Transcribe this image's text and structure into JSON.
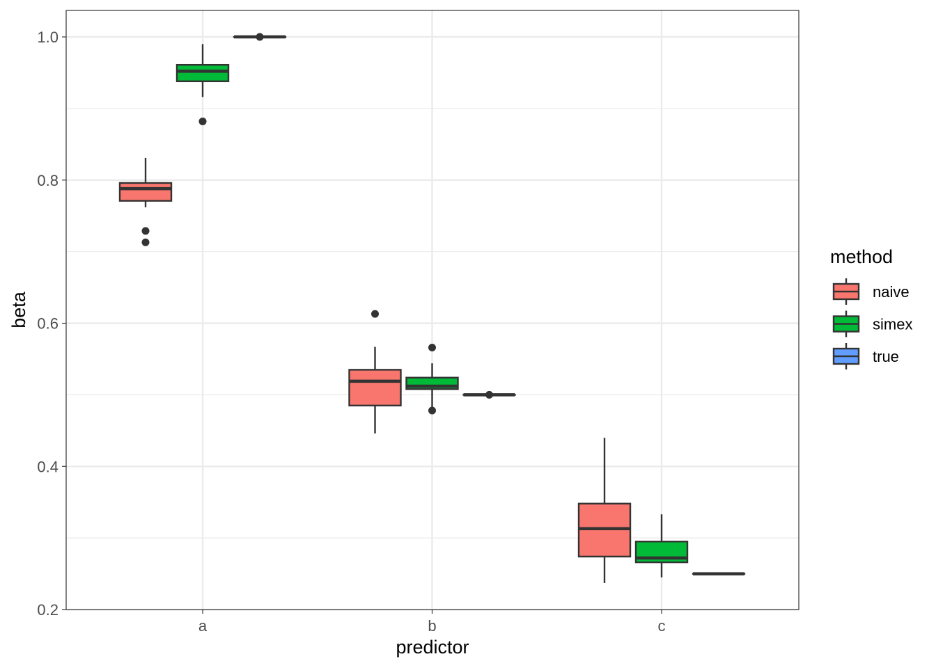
{
  "chart_data": {
    "type": "boxplot",
    "title": "",
    "xlabel": "predictor",
    "ylabel": "beta",
    "categories": [
      "a",
      "b",
      "c"
    ],
    "ylim": [
      0.2,
      1.037
    ],
    "y_ticks": [
      0.2,
      0.4,
      0.6,
      0.8,
      1.0
    ],
    "y_tick_labels": [
      "0.2",
      "0.4",
      "0.6",
      "0.8",
      "1.0"
    ],
    "legend": {
      "title": "method",
      "position": "right",
      "entries": [
        {
          "label": "naive",
          "color": "#F8766D"
        },
        {
          "label": "simex",
          "color": "#00BA38"
        },
        {
          "label": "true",
          "color": "#619CFF"
        }
      ]
    },
    "grid": true,
    "series": [
      {
        "name": "naive",
        "color": "#F8766D",
        "boxes": [
          {
            "category": "a",
            "whisker_low": 0.762,
            "q1": 0.771,
            "median": 0.788,
            "q3": 0.796,
            "whisker_high": 0.831,
            "outliers": [
              0.729,
              0.713
            ]
          },
          {
            "category": "b",
            "whisker_low": 0.446,
            "q1": 0.485,
            "median": 0.519,
            "q3": 0.535,
            "whisker_high": 0.567,
            "outliers": [
              0.613
            ]
          },
          {
            "category": "c",
            "whisker_low": 0.237,
            "q1": 0.274,
            "median": 0.313,
            "q3": 0.348,
            "whisker_high": 0.44,
            "outliers": []
          }
        ]
      },
      {
        "name": "simex",
        "color": "#00BA38",
        "boxes": [
          {
            "category": "a",
            "whisker_low": 0.916,
            "q1": 0.938,
            "median": 0.952,
            "q3": 0.961,
            "whisker_high": 0.99,
            "outliers": [
              0.882
            ]
          },
          {
            "category": "b",
            "whisker_low": 0.479,
            "q1": 0.508,
            "median": 0.512,
            "q3": 0.524,
            "whisker_high": 0.544,
            "outliers": [
              0.566,
              0.478
            ]
          },
          {
            "category": "c",
            "whisker_low": 0.245,
            "q1": 0.266,
            "median": 0.272,
            "q3": 0.295,
            "whisker_high": 0.333,
            "outliers": []
          }
        ]
      },
      {
        "name": "true",
        "color": "#619CFF",
        "boxes": [
          {
            "category": "a",
            "whisker_low": 1.0,
            "q1": 1.0,
            "median": 1.0,
            "q3": 1.0,
            "whisker_high": 1.0,
            "outliers": [
              1.0
            ]
          },
          {
            "category": "b",
            "whisker_low": 0.5,
            "q1": 0.5,
            "median": 0.5,
            "q3": 0.5,
            "whisker_high": 0.5,
            "outliers": [
              0.5
            ]
          },
          {
            "category": "c",
            "whisker_low": 0.25,
            "q1": 0.25,
            "median": 0.25,
            "q3": 0.25,
            "whisker_high": 0.25,
            "outliers": []
          }
        ]
      }
    ]
  }
}
